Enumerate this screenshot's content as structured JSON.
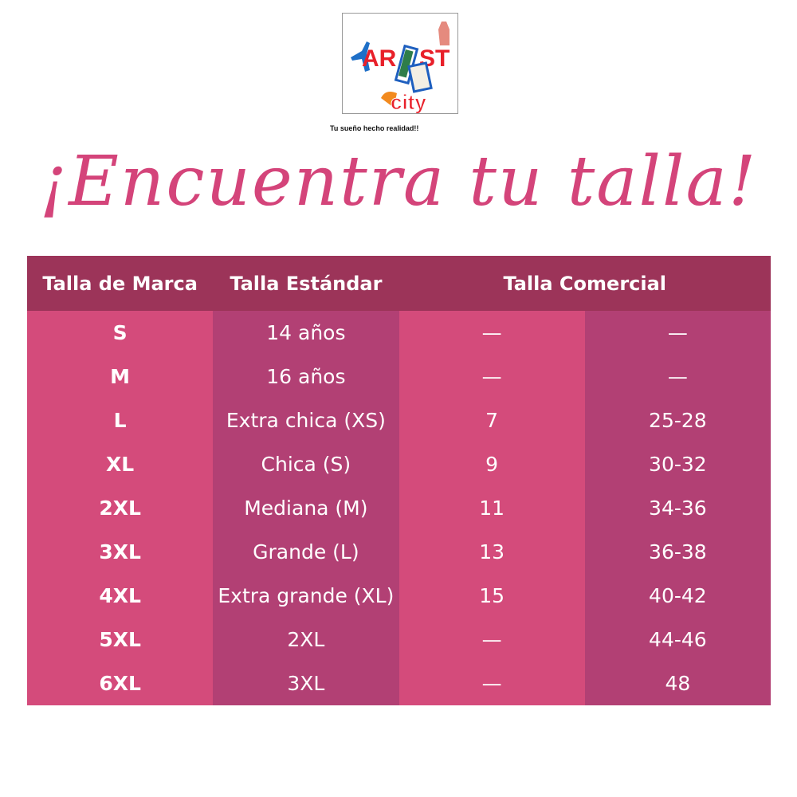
{
  "logo": {
    "text": "ARTIST city",
    "tagline": "Tu sueño hecho realidad!!"
  },
  "title": "¡Encuentra tu talla!",
  "colors": {
    "title": "#d4447a",
    "header": "#9c3459",
    "col_light": "#d44b7b",
    "col_dark": "#b24074"
  },
  "table": {
    "headers": [
      "Talla de Marca",
      "Talla Estándar",
      "Talla Comercial"
    ],
    "rows": [
      [
        "S",
        "14 años",
        "—",
        "—"
      ],
      [
        "M",
        "16 años",
        "—",
        "—"
      ],
      [
        "L",
        "Extra chica (XS)",
        "7",
        "25-28"
      ],
      [
        "XL",
        "Chica (S)",
        "9",
        "30-32"
      ],
      [
        "2XL",
        "Mediana (M)",
        "11",
        "34-36"
      ],
      [
        "3XL",
        "Grande (L)",
        "13",
        "36-38"
      ],
      [
        "4XL",
        "Extra grande (XL)",
        "15",
        "40-42"
      ],
      [
        "5XL",
        "2XL",
        "—",
        "44-46"
      ],
      [
        "6XL",
        "3XL",
        "—",
        "48"
      ]
    ]
  }
}
